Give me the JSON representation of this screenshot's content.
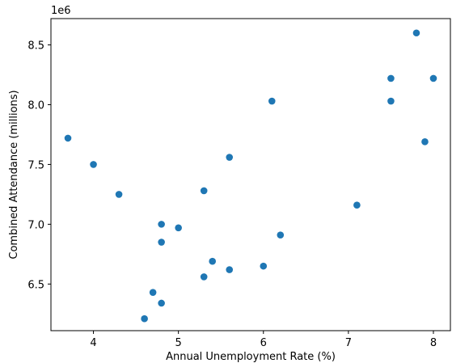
{
  "chart_data": {
    "type": "scatter",
    "title": "",
    "xlabel": "Annual Unemployment Rate (%)",
    "ylabel": "Combined Attendance (millions)",
    "y_offset_label": "1e6",
    "xlim": [
      3.5,
      8.2
    ],
    "ylim": [
      6110000,
      8720000
    ],
    "x_ticks": [
      4,
      5,
      6,
      7,
      8
    ],
    "x_tick_labels": [
      "4",
      "5",
      "6",
      "7",
      "8"
    ],
    "y_ticks": [
      6500000,
      7000000,
      7500000,
      8000000,
      8500000
    ],
    "y_tick_labels": [
      "6.5",
      "7.0",
      "7.5",
      "8.0",
      "8.5"
    ],
    "grid": false,
    "marker_color": "#1f77b4",
    "points": [
      {
        "x": 3.7,
        "y": 7720000
      },
      {
        "x": 4.0,
        "y": 7500000
      },
      {
        "x": 4.3,
        "y": 7250000
      },
      {
        "x": 4.6,
        "y": 6210000
      },
      {
        "x": 4.7,
        "y": 6430000
      },
      {
        "x": 4.8,
        "y": 7000000
      },
      {
        "x": 4.8,
        "y": 6850000
      },
      {
        "x": 4.8,
        "y": 6340000
      },
      {
        "x": 5.0,
        "y": 6970000
      },
      {
        "x": 5.3,
        "y": 7280000
      },
      {
        "x": 5.3,
        "y": 6560000
      },
      {
        "x": 5.4,
        "y": 6690000
      },
      {
        "x": 5.6,
        "y": 7560000
      },
      {
        "x": 5.6,
        "y": 6620000
      },
      {
        "x": 6.0,
        "y": 6650000
      },
      {
        "x": 6.1,
        "y": 8030000
      },
      {
        "x": 6.2,
        "y": 6910000
      },
      {
        "x": 7.1,
        "y": 7160000
      },
      {
        "x": 7.5,
        "y": 8220000
      },
      {
        "x": 7.5,
        "y": 8030000
      },
      {
        "x": 7.8,
        "y": 8600000
      },
      {
        "x": 7.9,
        "y": 7690000
      },
      {
        "x": 8.0,
        "y": 8220000
      }
    ]
  }
}
